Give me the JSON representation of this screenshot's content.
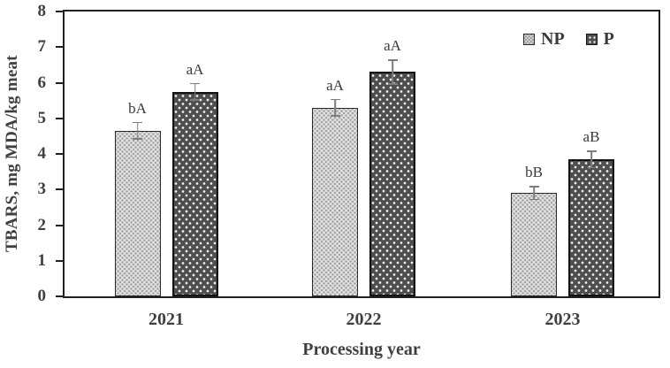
{
  "chart_data": {
    "type": "bar",
    "title": "",
    "xlabel": "Processing year",
    "ylabel": "TBARS, mg MDA/kg meat",
    "ylim": [
      0,
      8
    ],
    "yticks": [
      0,
      1,
      2,
      3,
      4,
      5,
      6,
      7,
      8
    ],
    "categories": [
      "2021",
      "2022",
      "2023"
    ],
    "series": [
      {
        "name": "NP",
        "values": [
          4.65,
          5.3,
          2.9
        ],
        "errors": [
          0.25,
          0.25,
          0.2
        ],
        "sig_labels": [
          "bA",
          "aA",
          "bB"
        ]
      },
      {
        "name": "P",
        "values": [
          5.75,
          6.3,
          3.85
        ],
        "errors": [
          0.25,
          0.35,
          0.25
        ],
        "sig_labels": [
          "aA",
          "aA",
          "aB"
        ]
      }
    ],
    "legend_position": "top-right",
    "grid": false
  },
  "colors": {
    "np_fill": "#e3e3e3",
    "np_pattern_dot": "#a3a3a3",
    "p_fill": "#4e4e4e",
    "p_pattern_dot": "#f2f2f2",
    "bar_border": "#1f1f1f",
    "axis_frame": "#1f1f1f",
    "error_bar": "#7d7d7d",
    "text": "#3f3f3f"
  }
}
